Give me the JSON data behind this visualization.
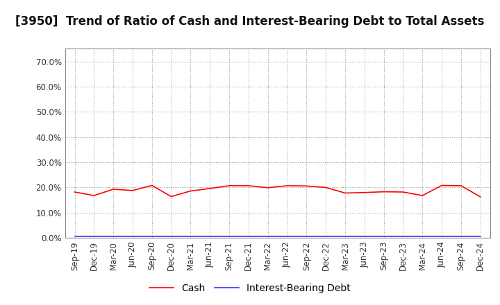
{
  "title": "[3950]  Trend of Ratio of Cash and Interest-Bearing Debt to Total Assets",
  "x_labels": [
    "Sep-19",
    "Dec-19",
    "Mar-20",
    "Jun-20",
    "Sep-20",
    "Dec-20",
    "Mar-21",
    "Jun-21",
    "Sep-21",
    "Dec-21",
    "Mar-22",
    "Jun-22",
    "Sep-22",
    "Dec-22",
    "Mar-23",
    "Jun-23",
    "Sep-23",
    "Dec-23",
    "Mar-24",
    "Jun-24",
    "Sep-24",
    "Dec-24"
  ],
  "cash": [
    0.182,
    0.168,
    0.193,
    0.188,
    0.208,
    0.164,
    0.186,
    0.196,
    0.207,
    0.207,
    0.199,
    0.207,
    0.206,
    0.2,
    0.178,
    0.18,
    0.183,
    0.182,
    0.168,
    0.208,
    0.207,
    0.163
  ],
  "interest_bearing_debt": [
    0.005,
    0.005,
    0.005,
    0.005,
    0.005,
    0.005,
    0.005,
    0.005,
    0.005,
    0.005,
    0.005,
    0.005,
    0.005,
    0.005,
    0.005,
    0.005,
    0.005,
    0.005,
    0.005,
    0.005,
    0.005,
    0.005
  ],
  "cash_color": "#FF0000",
  "debt_color": "#3333FF",
  "background_color": "#FFFFFF",
  "plot_bg_color": "#FFFFFF",
  "grid_color": "#999999",
  "ylim": [
    0.0,
    0.75
  ],
  "yticks": [
    0.0,
    0.1,
    0.2,
    0.3,
    0.4,
    0.5,
    0.6,
    0.7
  ],
  "legend_cash": "Cash",
  "legend_debt": "Interest-Bearing Debt",
  "title_fontsize": 12,
  "tick_fontsize": 8.5,
  "legend_fontsize": 10
}
